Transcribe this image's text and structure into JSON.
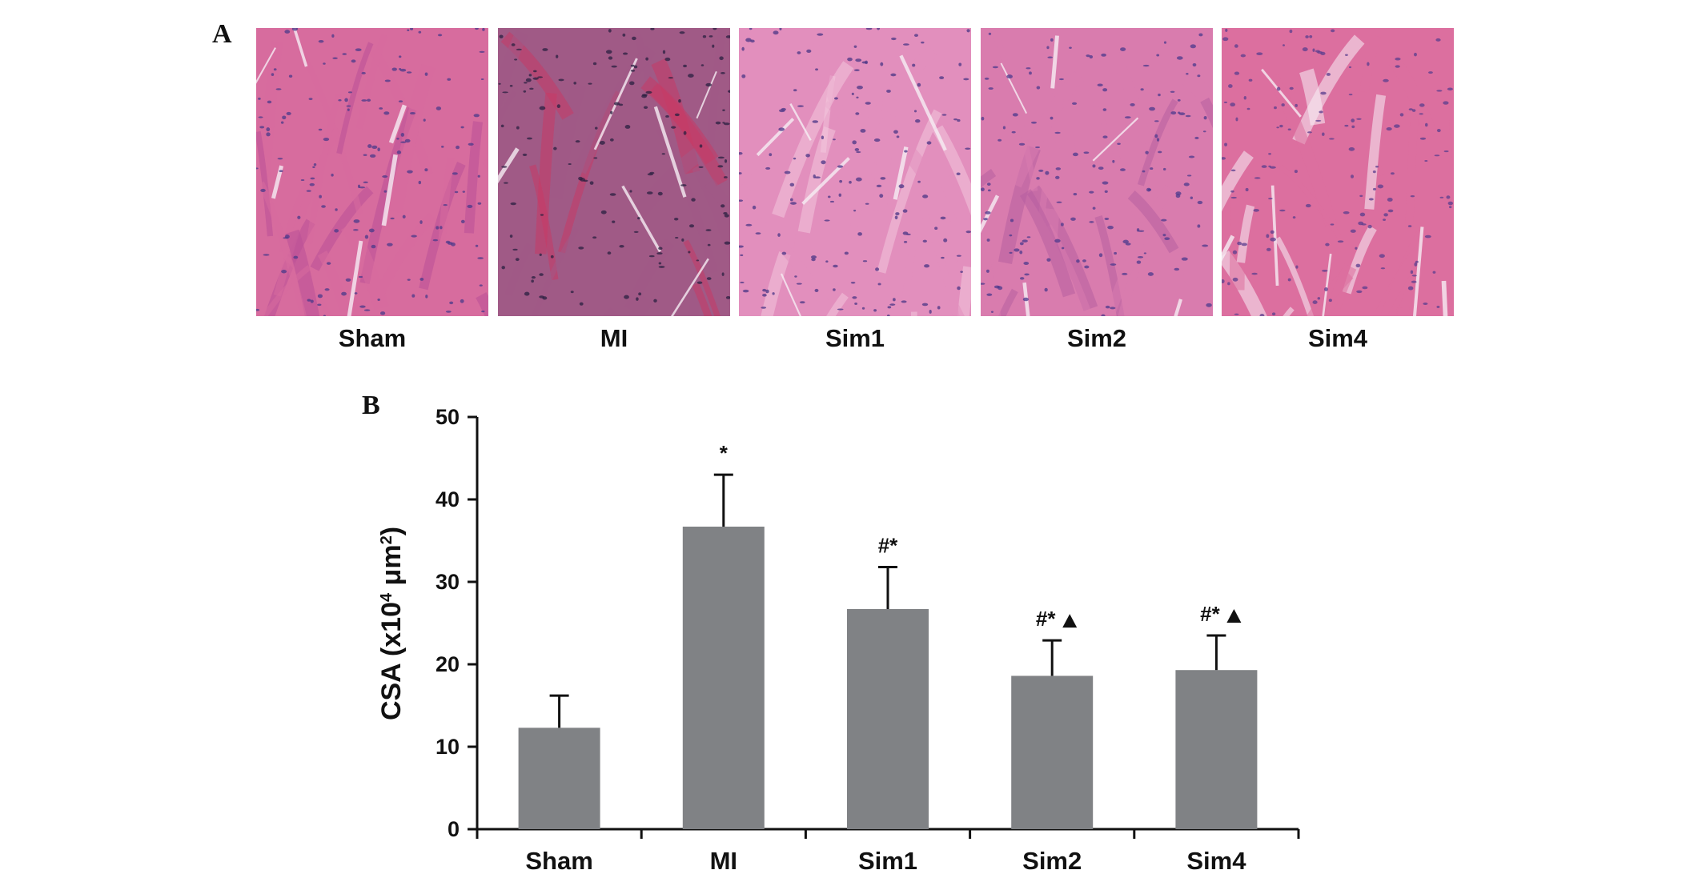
{
  "figure": {
    "panel_a_letter": "A",
    "panel_b_letter": "B"
  },
  "micrographs": [
    {
      "label": "Sham",
      "colors": {
        "base": "#d76c9e",
        "accent": "#b95197",
        "nuclei": "#4a3a8a"
      }
    },
    {
      "label": "MI",
      "colors": {
        "base": "#a05a86",
        "accent": "#c73a66",
        "nuclei": "#2a2040"
      }
    },
    {
      "label": "Sim1",
      "colors": {
        "base": "#e28fbd",
        "accent": "#f2c6dd",
        "nuclei": "#4a3585"
      }
    },
    {
      "label": "Sim2",
      "colors": {
        "base": "#d97cae",
        "accent": "#b65fa0",
        "nuclei": "#4b3a8c"
      }
    },
    {
      "label": "Sim4",
      "colors": {
        "base": "#dc6f9f",
        "accent": "#f7eef5",
        "nuclei": "#5a3d8e"
      }
    }
  ],
  "chart_data": {
    "type": "bar",
    "title": "",
    "xlabel": "",
    "ylabel_main": "CSA (x10",
    "ylabel_sup": "4",
    "ylabel_mid": " μm",
    "ylabel_sup2": "2",
    "ylabel_end": ")",
    "ylim": [
      0,
      50
    ],
    "yticks": [
      "0",
      "10",
      "20",
      "30",
      "40",
      "50"
    ],
    "categories": [
      "Sham",
      "MI",
      "Sim1",
      "Sim2",
      "Sim4"
    ],
    "values": [
      12.3,
      36.7,
      26.7,
      18.6,
      19.3
    ],
    "errors": [
      3.9,
      6.3,
      5.1,
      4.3,
      4.2
    ],
    "significance": [
      "",
      "*",
      "#*",
      "#*",
      "#*"
    ],
    "triangle_marker": [
      false,
      false,
      false,
      true,
      true
    ],
    "grid": false,
    "bar_color": "#808285",
    "axis_color": "#111111"
  }
}
